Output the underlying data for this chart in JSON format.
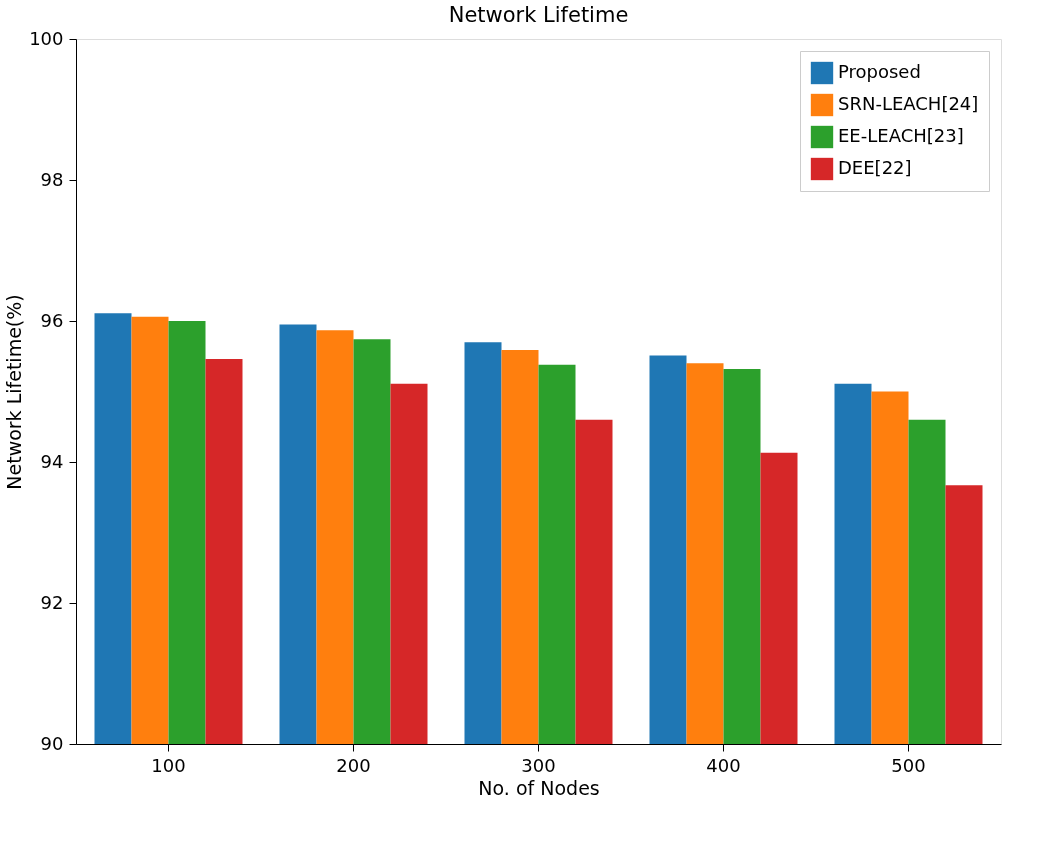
{
  "chart_data": {
    "type": "bar",
    "title": "Network Lifetime",
    "xlabel": "No. of Nodes",
    "ylabel": "Network Lifetime(%)",
    "categories": [
      "100",
      "200",
      "300",
      "400",
      "500"
    ],
    "series": [
      {
        "name": "Proposed",
        "color": "#1f77b4",
        "values": [
          96.11,
          95.95,
          95.7,
          95.51,
          95.11
        ]
      },
      {
        "name": "SRN-LEACH[24]",
        "color": "#ff7f0e",
        "values": [
          96.06,
          95.87,
          95.59,
          95.4,
          95.0
        ]
      },
      {
        "name": "EE-LEACH[23]",
        "color": "#2ca02c",
        "values": [
          96.0,
          95.74,
          95.38,
          95.32,
          94.6
        ]
      },
      {
        "name": "DEE[22]",
        "color": "#d62728",
        "values": [
          95.46,
          95.11,
          94.6,
          94.13,
          93.67
        ]
      }
    ],
    "ylim": [
      90,
      100
    ],
    "yticks": [
      90,
      92,
      94,
      96,
      98,
      100
    ],
    "grid": false,
    "legend": "top right"
  }
}
